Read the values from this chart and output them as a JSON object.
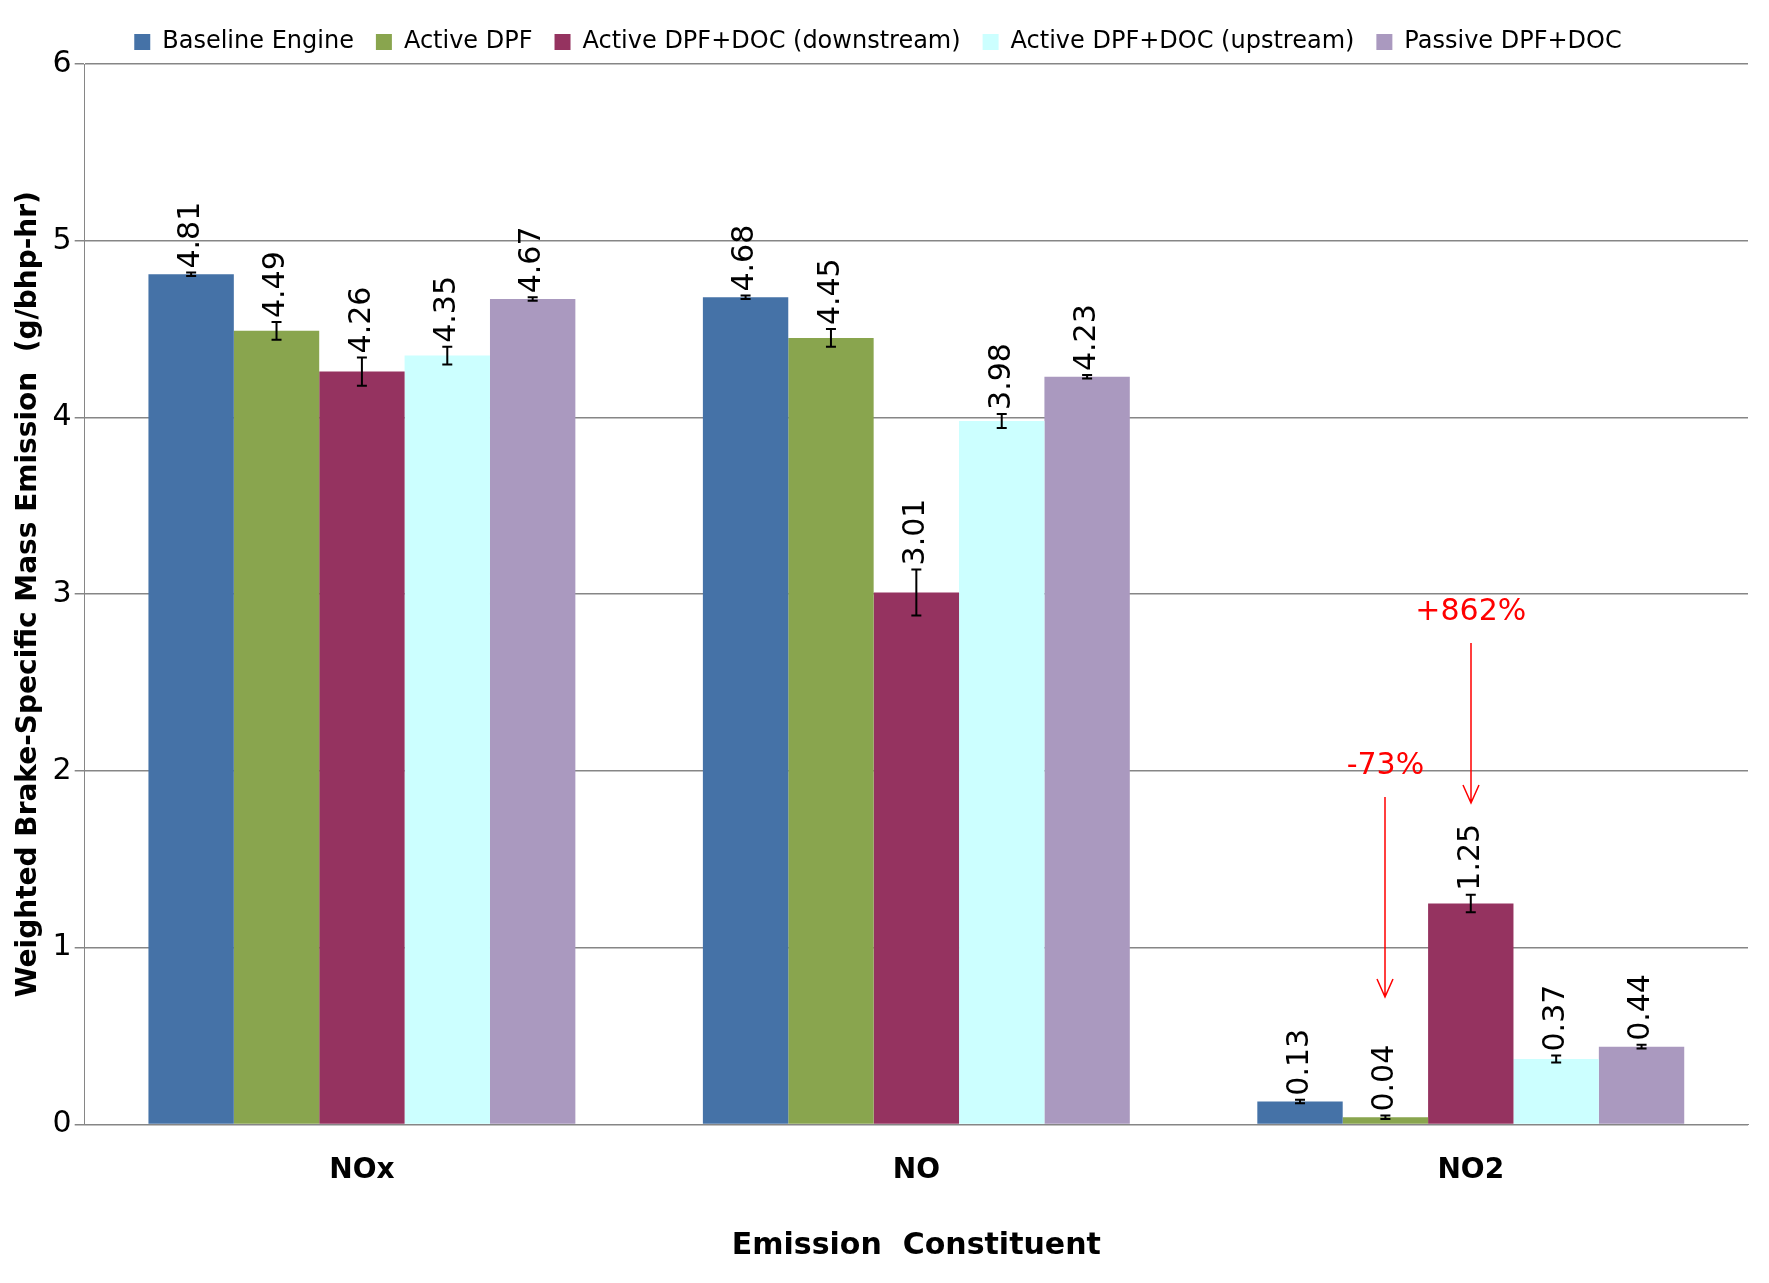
{
  "chart_data": {
    "type": "bar",
    "xlabel": "Emission  Constituent",
    "ylabel": "Weighted Brake-Specific Mass Emission  (g/bhp-hr)",
    "categories": [
      "NOx",
      "NO",
      "NO2"
    ],
    "series": [
      {
        "name": "Baseline Engine",
        "color": "#4572a7",
        "values": [
          4.81,
          4.68,
          0.13
        ],
        "errors": [
          0.01,
          0.01,
          0.01
        ]
      },
      {
        "name": "Active DPF",
        "color": "#89a54e",
        "values": [
          4.49,
          4.45,
          0.04
        ],
        "errors": [
          0.05,
          0.05,
          0.01
        ]
      },
      {
        "name": "Active DPF+DOC (downstream)",
        "color": "#953360",
        "values": [
          4.26,
          3.01,
          1.25
        ],
        "errors": [
          0.08,
          0.13,
          0.05
        ]
      },
      {
        "name": "Active DPF+DOC (upstream)",
        "color": "#ccffff",
        "values": [
          4.35,
          3.98,
          0.37
        ],
        "errors": [
          0.05,
          0.04,
          0.02
        ]
      },
      {
        "name": "Passive DPF+DOC",
        "color": "#aa99bf",
        "values": [
          4.67,
          4.23,
          0.44
        ],
        "errors": [
          0.01,
          0.01,
          0.01
        ]
      }
    ],
    "ylim": [
      0,
      6
    ],
    "yticks": [
      0,
      1,
      2,
      3,
      4,
      5,
      6
    ],
    "grid": "y",
    "legend": "top",
    "data_labels": true,
    "annotations": [
      "+862%",
      "-73%"
    ]
  }
}
